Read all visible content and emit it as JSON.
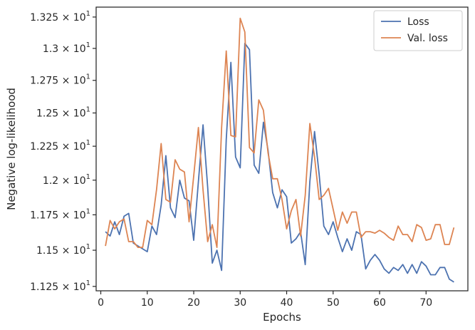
{
  "chart_data": {
    "type": "line",
    "xlabel": "Epochs",
    "ylabel": "Negative log-likelihood",
    "xlim": [
      -1,
      79
    ],
    "ylim": [
      11.22,
      13.33
    ],
    "yscale": "log",
    "x_ticks": [
      0,
      10,
      20,
      30,
      40,
      50,
      60,
      70
    ],
    "x_tick_labels": [
      "0",
      "10",
      "20",
      "30",
      "40",
      "50",
      "60",
      "70"
    ],
    "y_ticks": [
      11.25,
      11.5,
      11.75,
      12.0,
      12.25,
      12.5,
      12.75,
      13.0,
      13.25
    ],
    "y_tick_labels": [
      {
        "base": "1.125",
        "exp": "1"
      },
      {
        "base": "1.15",
        "exp": "1"
      },
      {
        "base": "1.175",
        "exp": "1"
      },
      {
        "base": "1.2",
        "exp": "1"
      },
      {
        "base": "1.225",
        "exp": "1"
      },
      {
        "base": "1.25",
        "exp": "1"
      },
      {
        "base": "1.275",
        "exp": "1"
      },
      {
        "base": "1.3",
        "exp": "1"
      },
      {
        "base": "1.325",
        "exp": "1"
      }
    ],
    "legend_position": "top-right",
    "grid": false,
    "x": [
      1,
      2,
      3,
      4,
      5,
      6,
      7,
      8,
      9,
      10,
      11,
      12,
      13,
      14,
      15,
      16,
      17,
      18,
      19,
      20,
      21,
      22,
      23,
      24,
      25,
      26,
      27,
      28,
      29,
      30,
      31,
      32,
      33,
      34,
      35,
      36,
      37,
      38,
      39,
      40,
      41,
      42,
      43,
      44,
      45,
      46,
      47,
      48,
      49,
      50,
      51,
      52,
      53,
      54,
      55,
      56,
      57,
      58,
      59,
      60,
      61,
      62,
      63,
      64,
      65,
      66,
      67,
      68,
      69,
      70,
      71,
      72,
      73,
      74,
      75,
      76
    ],
    "series": [
      {
        "name": "Loss",
        "color": "#4c72b0",
        "values": [
          11.63,
          11.6,
          11.7,
          11.61,
          11.74,
          11.76,
          11.55,
          11.53,
          11.51,
          11.49,
          11.67,
          11.61,
          11.82,
          12.18,
          11.8,
          11.73,
          12.0,
          11.87,
          11.85,
          11.57,
          11.99,
          12.41,
          11.95,
          11.41,
          11.5,
          11.36,
          12.3,
          12.89,
          12.17,
          12.09,
          13.04,
          12.99,
          12.11,
          12.05,
          12.43,
          12.22,
          11.91,
          11.8,
          11.93,
          11.88,
          11.55,
          11.58,
          11.63,
          11.4,
          11.99,
          12.36,
          12.04,
          11.67,
          11.61,
          11.7,
          11.59,
          11.49,
          11.58,
          11.5,
          11.63,
          11.61,
          11.37,
          11.43,
          11.47,
          11.43,
          11.37,
          11.34,
          11.38,
          11.36,
          11.4,
          11.34,
          11.4,
          11.34,
          11.42,
          11.39,
          11.33,
          11.33,
          11.38,
          11.38,
          11.3,
          11.28
        ]
      },
      {
        "name": "Val. loss",
        "color": "#dd8452",
        "values": [
          11.53,
          11.71,
          11.65,
          11.7,
          11.72,
          11.56,
          11.56,
          11.52,
          11.52,
          11.71,
          11.68,
          11.93,
          12.27,
          11.86,
          11.84,
          12.15,
          12.08,
          12.06,
          11.7,
          12.03,
          12.39,
          11.93,
          11.56,
          11.68,
          11.52,
          12.39,
          12.98,
          12.33,
          12.32,
          13.24,
          13.13,
          12.24,
          12.2,
          12.6,
          12.52,
          12.2,
          12.01,
          12.01,
          11.86,
          11.65,
          11.78,
          11.86,
          11.6,
          11.89,
          12.42,
          12.17,
          11.86,
          11.89,
          11.94,
          11.79,
          11.64,
          11.77,
          11.69,
          11.77,
          11.77,
          11.59,
          11.63,
          11.63,
          11.62,
          11.64,
          11.62,
          11.59,
          11.57,
          11.67,
          11.61,
          11.61,
          11.56,
          11.68,
          11.66,
          11.57,
          11.58,
          11.68,
          11.68,
          11.54,
          11.54,
          11.66
        ]
      }
    ]
  }
}
